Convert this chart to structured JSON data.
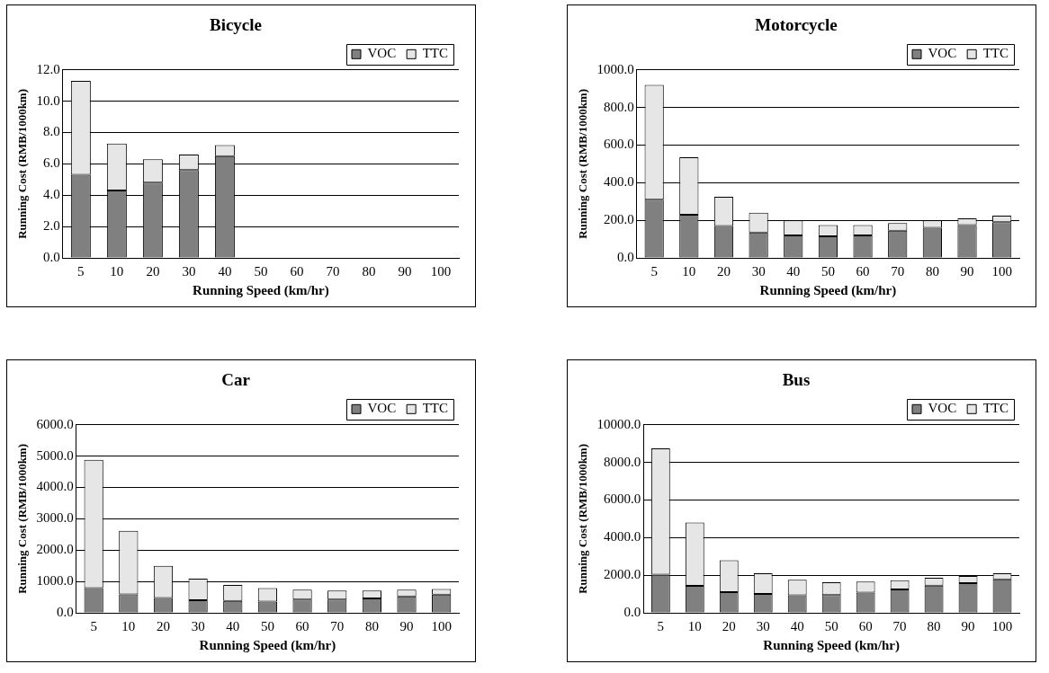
{
  "chart_data": [
    {
      "type": "bar",
      "title": "Bicycle",
      "xlabel": "Running Speed (km/hr)",
      "ylabel": "Running Cost (RMB/1000km)",
      "categories": [
        "5",
        "10",
        "20",
        "30",
        "40",
        "50",
        "60",
        "70",
        "80",
        "90",
        "100"
      ],
      "stacked": true,
      "grid": "y",
      "legend": "top right",
      "ylim": [
        0,
        12
      ],
      "yticks": [
        {
          "value": 0,
          "label": "0.0"
        },
        {
          "value": 2,
          "label": "2.0"
        },
        {
          "value": 4,
          "label": "4.0"
        },
        {
          "value": 6,
          "label": "6.0"
        },
        {
          "value": 8,
          "label": "8.0"
        },
        {
          "value": 10,
          "label": "10.0"
        },
        {
          "value": 12,
          "label": "12.0"
        }
      ],
      "series": [
        {
          "name": "VOC",
          "color": "#808080",
          "values": [
            5.3,
            4.3,
            4.8,
            5.6,
            6.5,
            null,
            null,
            null,
            null,
            null,
            null
          ]
        },
        {
          "name": "TTC",
          "color": "#e6e6e6",
          "values": [
            6.0,
            3.0,
            1.5,
            1.0,
            0.7,
            null,
            null,
            null,
            null,
            null,
            null
          ]
        }
      ]
    },
    {
      "type": "bar",
      "title": "Motorcycle",
      "xlabel": "Running Speed (km/hr)",
      "ylabel": "Running Cost (RMB/1000km)",
      "categories": [
        "5",
        "10",
        "20",
        "30",
        "40",
        "50",
        "60",
        "70",
        "80",
        "90",
        "100"
      ],
      "stacked": true,
      "grid": "y",
      "legend": "top right",
      "ylim": [
        0,
        1000
      ],
      "yticks": [
        {
          "value": 0,
          "label": "0.0"
        },
        {
          "value": 200,
          "label": "200.0"
        },
        {
          "value": 400,
          "label": "400.0"
        },
        {
          "value": 600,
          "label": "600.0"
        },
        {
          "value": 800,
          "label": "800.0"
        },
        {
          "value": 1000,
          "label": "1000.0"
        }
      ],
      "series": [
        {
          "name": "VOC",
          "color": "#808080",
          "values": [
            310,
            230,
            170,
            135,
            120,
            115,
            120,
            145,
            160,
            175,
            190
          ]
        },
        {
          "name": "TTC",
          "color": "#e6e6e6",
          "values": [
            610,
            305,
            155,
            105,
            80,
            60,
            55,
            40,
            40,
            35,
            35
          ]
        }
      ]
    },
    {
      "type": "bar",
      "title": "Car",
      "xlabel": "Running Speed (km/hr)",
      "ylabel": "Running Cost (RMB/1000km)",
      "categories": [
        "5",
        "10",
        "20",
        "30",
        "40",
        "50",
        "60",
        "70",
        "80",
        "90",
        "100"
      ],
      "stacked": true,
      "grid": "y",
      "legend": "top right",
      "ylim": [
        0,
        6000
      ],
      "yticks": [
        {
          "value": 0,
          "label": "0.0"
        },
        {
          "value": 1000,
          "label": "1000.0"
        },
        {
          "value": 2000,
          "label": "2000.0"
        },
        {
          "value": 3000,
          "label": "3000.0"
        },
        {
          "value": 4000,
          "label": "4000.0"
        },
        {
          "value": 5000,
          "label": "5000.0"
        },
        {
          "value": 6000,
          "label": "6000.0"
        }
      ],
      "series": [
        {
          "name": "VOC",
          "color": "#808080",
          "values": [
            790,
            590,
            470,
            400,
            380,
            360,
            420,
            420,
            460,
            520,
            580
          ]
        },
        {
          "name": "TTC",
          "color": "#e6e6e6",
          "values": [
            4090,
            2030,
            1030,
            690,
            510,
            430,
            320,
            290,
            250,
            220,
            180
          ]
        }
      ]
    },
    {
      "type": "bar",
      "title": "Bus",
      "xlabel": "Running Speed (km/hr)",
      "ylabel": "Running Cost (RMB/1000km)",
      "categories": [
        "5",
        "10",
        "20",
        "30",
        "40",
        "50",
        "60",
        "70",
        "80",
        "90",
        "100"
      ],
      "stacked": true,
      "grid": "y",
      "legend": "top right",
      "ylim": [
        0,
        10000
      ],
      "yticks": [
        {
          "value": 0,
          "label": "0.0"
        },
        {
          "value": 2000,
          "label": "2000.0"
        },
        {
          "value": 4000,
          "label": "4000.0"
        },
        {
          "value": 6000,
          "label": "6000.0"
        },
        {
          "value": 8000,
          "label": "8000.0"
        },
        {
          "value": 10000,
          "label": "10000.0"
        }
      ],
      "series": [
        {
          "name": "VOC",
          "color": "#808080",
          "values": [
            2030,
            1430,
            1100,
            1000,
            930,
            950,
            1080,
            1240,
            1450,
            1580,
            1780
          ]
        },
        {
          "name": "TTC",
          "color": "#e6e6e6",
          "values": [
            6720,
            3370,
            1700,
            1100,
            830,
            680,
            580,
            490,
            410,
            380,
            320
          ]
        }
      ]
    }
  ]
}
